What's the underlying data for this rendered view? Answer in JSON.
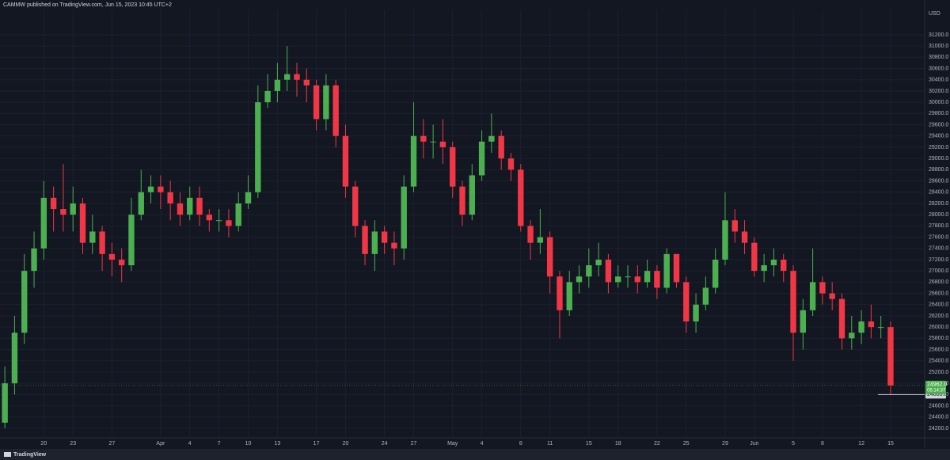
{
  "chart_data": {
    "type": "candlestick",
    "title": "CAMMW published on TradingView.com, Jun 15, 2023 10:45 UTC+2",
    "brand": "TradingView",
    "y_unit": "USD",
    "x": [
      0,
      1,
      2,
      3,
      4,
      5,
      6,
      7,
      8,
      9,
      10,
      11,
      12,
      13,
      14,
      15,
      16,
      17,
      18,
      19,
      20,
      21,
      22,
      23,
      24,
      25,
      26,
      27,
      28,
      29,
      30,
      31,
      32,
      33,
      34,
      35,
      36,
      37,
      38,
      39,
      40,
      41,
      42,
      43,
      44,
      45,
      46,
      47,
      48,
      49,
      50,
      51,
      52,
      53,
      54,
      55,
      56,
      57,
      58,
      59,
      60,
      61,
      62,
      63,
      64,
      65,
      66,
      67,
      68,
      69,
      70,
      71,
      72,
      73,
      74,
      75,
      76,
      77,
      78,
      79,
      80,
      81,
      82,
      83,
      84,
      85,
      86,
      87,
      88,
      89,
      90,
      91
    ],
    "open": [
      24300,
      25000,
      25900,
      27000,
      27400,
      28300,
      28100,
      28000,
      28200,
      27500,
      27700,
      27300,
      27200,
      27100,
      28000,
      28400,
      28500,
      28400,
      28200,
      28000,
      28300,
      28000,
      27900,
      27900,
      27800,
      28200,
      28400,
      30000,
      30200,
      30400,
      30500,
      30400,
      30300,
      29700,
      30300,
      29400,
      28500,
      27800,
      27300,
      27700,
      27500,
      27400,
      28500,
      29400,
      29300,
      29300,
      29200,
      28500,
      28000,
      28700,
      29300,
      29400,
      29000,
      28800,
      27800,
      27500,
      27600,
      26900,
      26300,
      26800,
      26900,
      27100,
      27200,
      26800,
      26900,
      26900,
      26800,
      27000,
      26700,
      27300,
      26800,
      26100,
      26400,
      26700,
      27200,
      27900,
      27700,
      27500,
      27000,
      27100,
      27200,
      27000,
      25900,
      26300,
      26800,
      26600,
      26500,
      25800,
      25900,
      26100,
      26000,
      26000
    ],
    "high": [
      25300,
      26200,
      27300,
      27700,
      28600,
      28500,
      28900,
      28500,
      28300,
      28000,
      27800,
      27500,
      27400,
      28300,
      28800,
      28700,
      28700,
      28600,
      28400,
      28500,
      28500,
      28100,
      28100,
      28100,
      28400,
      28700,
      30300,
      30500,
      30700,
      31000,
      30700,
      30600,
      30400,
      30500,
      30400,
      29600,
      28600,
      27900,
      27900,
      27800,
      27700,
      28700,
      30000,
      29700,
      29600,
      29700,
      29300,
      28600,
      28900,
      29500,
      29800,
      29500,
      29100,
      28900,
      27900,
      28100,
      27700,
      27000,
      27000,
      27100,
      27400,
      27500,
      27300,
      27100,
      27100,
      27100,
      27200,
      27100,
      27400,
      27300,
      26900,
      26600,
      26900,
      27400,
      28400,
      28100,
      27900,
      27600,
      27300,
      27400,
      27300,
      27100,
      26500,
      27400,
      26900,
      26800,
      26600,
      26200,
      26300,
      26400,
      26200,
      26100
    ],
    "low": [
      24200,
      24800,
      25700,
      26700,
      27200,
      27700,
      27700,
      27700,
      27300,
      27300,
      27000,
      26900,
      26800,
      27000,
      27900,
      28200,
      28100,
      27900,
      27800,
      27900,
      27800,
      27700,
      27700,
      27600,
      27700,
      28100,
      28300,
      29900,
      30000,
      30200,
      30100,
      30000,
      29500,
      29500,
      29200,
      28300,
      27600,
      27100,
      27000,
      27300,
      27100,
      27200,
      28400,
      29000,
      29000,
      28900,
      28300,
      27800,
      27900,
      28600,
      29100,
      28800,
      28600,
      27700,
      27200,
      27300,
      26600,
      25800,
      26200,
      26600,
      26700,
      26900,
      26600,
      26700,
      26700,
      26600,
      26700,
      26500,
      26600,
      26700,
      25900,
      25900,
      26300,
      26600,
      27100,
      27500,
      27300,
      26900,
      26800,
      26900,
      26800,
      25400,
      25600,
      26200,
      26400,
      26300,
      25600,
      25600,
      25700,
      25800,
      25800,
      24800
    ],
    "close": [
      25000,
      25900,
      27000,
      27400,
      28300,
      28100,
      28000,
      28200,
      27500,
      27700,
      27300,
      27200,
      27100,
      28000,
      28400,
      28500,
      28400,
      28200,
      28000,
      28300,
      28000,
      27900,
      27900,
      27800,
      28200,
      28400,
      30000,
      30200,
      30400,
      30500,
      30400,
      30300,
      29700,
      30300,
      29400,
      28500,
      27800,
      27300,
      27700,
      27500,
      27400,
      28500,
      29400,
      29300,
      29300,
      29200,
      28500,
      28000,
      28700,
      29300,
      29400,
      29000,
      28800,
      27800,
      27500,
      27600,
      26900,
      26300,
      26800,
      26900,
      27100,
      27200,
      26800,
      26900,
      26900,
      26800,
      27000,
      26700,
      27300,
      26800,
      26100,
      26400,
      26700,
      27200,
      27900,
      27700,
      27500,
      27000,
      27100,
      27200,
      27000,
      25900,
      26300,
      26800,
      26600,
      26500,
      25800,
      25900,
      26100,
      26000,
      26000,
      24962
    ],
    "up_color": "#4caf50",
    "down_color": "#f23645",
    "xlim": [
      -0.5,
      94.5
    ],
    "xticks": [
      {
        "value": 4,
        "label": "20"
      },
      {
        "value": 7,
        "label": "23"
      },
      {
        "value": 11,
        "label": "27"
      },
      {
        "value": 16,
        "label": "Apr"
      },
      {
        "value": 19,
        "label": "4"
      },
      {
        "value": 22,
        "label": "7"
      },
      {
        "value": 25,
        "label": "10"
      },
      {
        "value": 28,
        "label": "13"
      },
      {
        "value": 32,
        "label": "17"
      },
      {
        "value": 35,
        "label": "20"
      },
      {
        "value": 39,
        "label": "24"
      },
      {
        "value": 42,
        "label": "27"
      },
      {
        "value": 46,
        "label": "May"
      },
      {
        "value": 49,
        "label": "4"
      },
      {
        "value": 53,
        "label": "8"
      },
      {
        "value": 56,
        "label": "11"
      },
      {
        "value": 60,
        "label": "15"
      },
      {
        "value": 63,
        "label": "18"
      },
      {
        "value": 67,
        "label": "22"
      },
      {
        "value": 70,
        "label": "25"
      },
      {
        "value": 74,
        "label": "29"
      },
      {
        "value": 77,
        "label": "Jun"
      },
      {
        "value": 81,
        "label": "5"
      },
      {
        "value": 84,
        "label": "8"
      },
      {
        "value": 88,
        "label": "12"
      },
      {
        "value": 91,
        "label": "15"
      }
    ],
    "ylim": [
      24030,
      31650
    ],
    "yticks": [
      {
        "value": 24200,
        "label": "24200.0"
      },
      {
        "value": 24400,
        "label": "24400.0"
      },
      {
        "value": 24600,
        "label": "24600.0"
      },
      {
        "value": 24800,
        "label": "24800.0"
      },
      {
        "value": 25000,
        "label": "25000.0"
      },
      {
        "value": 25200,
        "label": "25200.0"
      },
      {
        "value": 25400,
        "label": "25400.0"
      },
      {
        "value": 25600,
        "label": "25600.0"
      },
      {
        "value": 25800,
        "label": "25800.0"
      },
      {
        "value": 26000,
        "label": "26000.0"
      },
      {
        "value": 26200,
        "label": "26200.0"
      },
      {
        "value": 26400,
        "label": "26400.0"
      },
      {
        "value": 26600,
        "label": "26600.0"
      },
      {
        "value": 26800,
        "label": "26800.0"
      },
      {
        "value": 27000,
        "label": "27000.0"
      },
      {
        "value": 27200,
        "label": "27200.0"
      },
      {
        "value": 27400,
        "label": "27400.0"
      },
      {
        "value": 27600,
        "label": "27600.0"
      },
      {
        "value": 27800,
        "label": "27800.0"
      },
      {
        "value": 28000,
        "label": "28000.0"
      },
      {
        "value": 28200,
        "label": "28200.0"
      },
      {
        "value": 28400,
        "label": "28400.0"
      },
      {
        "value": 28600,
        "label": "28600.0"
      },
      {
        "value": 28800,
        "label": "28800.0"
      },
      {
        "value": 29000,
        "label": "29000.0"
      },
      {
        "value": 29200,
        "label": "29200.0"
      },
      {
        "value": 29400,
        "label": "29400.0"
      },
      {
        "value": 29600,
        "label": "29600.0"
      },
      {
        "value": 29800,
        "label": "29800.0"
      },
      {
        "value": 30000,
        "label": "30000.0"
      },
      {
        "value": 30200,
        "label": "30200.0"
      },
      {
        "value": 30400,
        "label": "30400.0"
      },
      {
        "value": 30600,
        "label": "30600.0"
      },
      {
        "value": 30800,
        "label": "30800.0"
      },
      {
        "value": 31000,
        "label": "31000.0"
      },
      {
        "value": 31200,
        "label": "31200.0"
      }
    ],
    "grid": true,
    "hline": {
      "value": 24800,
      "label": "24800.0"
    },
    "last_price": {
      "value": 24962,
      "label": "24962.0",
      "countdown": "05:14:37"
    }
  }
}
